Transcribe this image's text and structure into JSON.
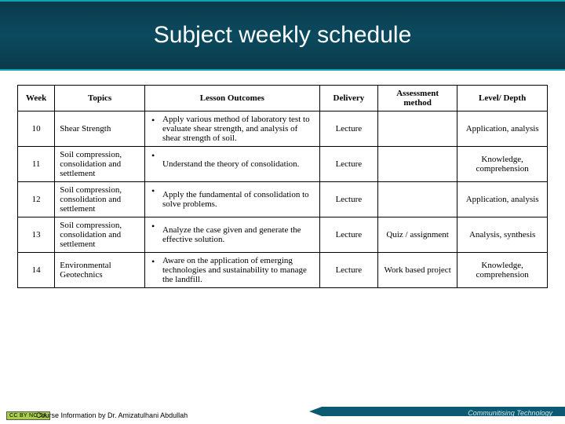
{
  "title": "Subject weekly schedule",
  "headers": {
    "week": "Week",
    "topics": "Topics",
    "outcomes": "Lesson Outcomes",
    "delivery": "Delivery",
    "assessment": "Assessment method",
    "level": "Level/ Depth"
  },
  "rows": [
    {
      "week": "10",
      "topic": "Shear Strength",
      "outcome": "Apply various method of laboratory test to evaluate shear strength, and analysis of shear strength of soil.",
      "delivery": "Lecture",
      "assessment": "",
      "level": "Application, analysis"
    },
    {
      "week": "11",
      "topic": "Soil compression, consolidation and settlement",
      "outcome": "Understand the theory of consolidation.",
      "delivery": "Lecture",
      "assessment": "",
      "level": "Knowledge, comprehension"
    },
    {
      "week": "12",
      "topic": "Soil compression, consolidation and settlement",
      "outcome": "Apply the fundamental of consolidation to solve problems.",
      "delivery": "Lecture",
      "assessment": "",
      "level": "Application, analysis"
    },
    {
      "week": "13",
      "topic": "Soil compression, consolidation and settlement",
      "outcome": "Analyze the case given and generate the effective solution.",
      "delivery": "Lecture",
      "assessment": "Quiz / assignment",
      "level": "Analysis, synthesis"
    },
    {
      "week": "14",
      "topic": "Environmental Geotechnics",
      "outcome": "Aware on the application of emerging technologies and sustainability to manage the landfill.",
      "delivery": "Lecture",
      "assessment": "Work based project",
      "level": "Knowledge, comprehension"
    }
  ],
  "credit": "Course Information by Dr. Amizatulhani Abdullah",
  "footer_tag": "Communitising Technology",
  "cc_label": "CC BY NC SA",
  "colors": {
    "band_dark": "#0b3a4a",
    "band_mid": "#0b4a5f",
    "accent": "#0fa5b5",
    "stripe": "#0b5a72",
    "cc_bg": "#a9cf4a"
  }
}
